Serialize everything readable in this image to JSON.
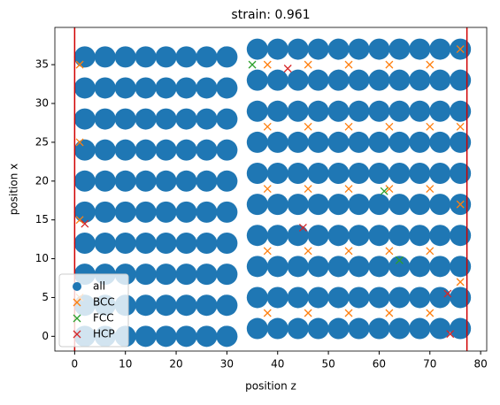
{
  "chart_data": {
    "type": "scatter",
    "title": "strain: 0.961",
    "xlabel": "position z",
    "ylabel": "position x",
    "xlim": [
      -3.9,
      81.2
    ],
    "ylim": [
      -1.9,
      39.8
    ],
    "xticks": [
      0,
      10,
      20,
      30,
      40,
      50,
      60,
      70,
      80
    ],
    "yticks": [
      0,
      5,
      10,
      15,
      20,
      25,
      30,
      35
    ],
    "legend": "lower left",
    "vlines": [
      0,
      77.3
    ],
    "vline_color": "#d00000",
    "series": [
      {
        "name": "all",
        "color": "#1f77b4",
        "marker": "circle",
        "x": [
          2,
          2,
          2,
          2,
          2,
          2,
          2,
          2,
          2,
          2,
          6,
          6,
          6,
          6,
          6,
          6,
          6,
          6,
          6,
          6,
          10,
          10,
          10,
          10,
          10,
          10,
          10,
          10,
          10,
          10,
          14,
          14,
          14,
          14,
          14,
          14,
          14,
          14,
          14,
          14,
          18,
          18,
          18,
          18,
          18,
          18,
          18,
          18,
          18,
          18,
          22,
          22,
          22,
          22,
          22,
          22,
          22,
          22,
          22,
          22,
          26,
          26,
          26,
          26,
          26,
          26,
          26,
          26,
          26,
          26,
          30,
          30,
          30,
          30,
          30,
          30,
          30,
          30,
          30,
          30,
          36,
          36,
          36,
          36,
          36,
          36,
          36,
          36,
          36,
          36,
          40,
          40,
          40,
          40,
          40,
          40,
          40,
          40,
          40,
          40,
          44,
          44,
          44,
          44,
          44,
          44,
          44,
          44,
          44,
          44,
          48,
          48,
          48,
          48,
          48,
          48,
          48,
          48,
          48,
          48,
          52,
          52,
          52,
          52,
          52,
          52,
          52,
          52,
          52,
          52,
          56,
          56,
          56,
          56,
          56,
          56,
          56,
          56,
          56,
          56,
          60,
          60,
          60,
          60,
          60,
          60,
          60,
          60,
          60,
          60,
          64,
          64,
          64,
          64,
          64,
          64,
          64,
          64,
          64,
          64,
          68,
          68,
          68,
          68,
          68,
          68,
          68,
          68,
          68,
          68,
          72,
          72,
          72,
          72,
          72,
          72,
          72,
          72,
          72,
          72,
          76,
          76,
          76,
          76,
          76,
          76,
          76,
          76,
          76,
          76
        ],
        "y": [
          0,
          4,
          8,
          12,
          16,
          20,
          24,
          28,
          32,
          36,
          0,
          4,
          8,
          12,
          16,
          20,
          24,
          28,
          32,
          36,
          0,
          4,
          8,
          12,
          16,
          20,
          24,
          28,
          32,
          36,
          0,
          4,
          8,
          12,
          16,
          20,
          24,
          28,
          32,
          36,
          0,
          4,
          8,
          12,
          16,
          20,
          24,
          28,
          32,
          36,
          0,
          4,
          8,
          12,
          16,
          20,
          24,
          28,
          32,
          36,
          0,
          4,
          8,
          12,
          16,
          20,
          24,
          28,
          32,
          36,
          0,
          4,
          8,
          12,
          16,
          20,
          24,
          28,
          32,
          36,
          1,
          5,
          9,
          13,
          17,
          21,
          25,
          29,
          33,
          37,
          1,
          5,
          9,
          13,
          17,
          21,
          25,
          29,
          33,
          37,
          1,
          5,
          9,
          13,
          17,
          21,
          25,
          29,
          33,
          37,
          1,
          5,
          9,
          13,
          17,
          21,
          25,
          29,
          33,
          37,
          1,
          5,
          9,
          13,
          17,
          21,
          25,
          29,
          33,
          37,
          1,
          5,
          9,
          13,
          17,
          21,
          25,
          29,
          33,
          37,
          1,
          5,
          9,
          13,
          17,
          21,
          25,
          29,
          33,
          37,
          1,
          5,
          9,
          13,
          17,
          21,
          25,
          29,
          33,
          37,
          1,
          5,
          9,
          13,
          17,
          21,
          25,
          29,
          33,
          37,
          1,
          5,
          9,
          13,
          17,
          21,
          25,
          29,
          33,
          37,
          1,
          5,
          9,
          13,
          17,
          21,
          25,
          29,
          33,
          37
        ]
      },
      {
        "name": "BCC",
        "color": "#ff7f0e",
        "marker": "x",
        "x": [
          1,
          1,
          1,
          1,
          38,
          38,
          38,
          38,
          38,
          46,
          46,
          46,
          46,
          46,
          54,
          54,
          54,
          54,
          54,
          62,
          62,
          62,
          62,
          62,
          70,
          70,
          70,
          70,
          70,
          76,
          76,
          76,
          76
        ],
        "y": [
          5,
          15,
          25,
          35,
          3,
          11,
          19,
          27,
          35,
          3,
          11,
          19,
          27,
          35,
          3,
          11,
          19,
          27,
          35,
          3,
          11,
          19,
          27,
          35,
          3,
          11,
          19,
          27,
          35,
          7,
          17,
          27,
          37
        ]
      },
      {
        "name": "FCC",
        "color": "#2ca02c",
        "marker": "x",
        "x": [
          61,
          64,
          35
        ],
        "y": [
          18.7,
          9.8,
          35
        ]
      },
      {
        "name": "HCP",
        "color": "#d62728",
        "marker": "x",
        "x": [
          45,
          42,
          74,
          2,
          73.5
        ],
        "y": [
          14,
          34.5,
          0.3,
          14.5,
          5.5
        ]
      }
    ]
  }
}
